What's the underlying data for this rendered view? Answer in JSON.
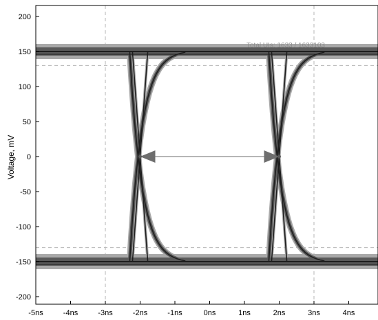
{
  "chart_data": {
    "type": "line",
    "title": "",
    "xlabel": "",
    "ylabel": "Voltage, mV",
    "xlim": [
      -5,
      5
    ],
    "ylim": [
      -220,
      220
    ],
    "x_ticks": [
      -5,
      -4,
      -3,
      -2,
      -1,
      0,
      1,
      2,
      3,
      4
    ],
    "x_tick_labels": [
      "-5ns",
      "-4ns",
      "-3ns",
      "-2ns",
      "-1ns",
      "0ns",
      "1ns",
      "2ns",
      "3ns",
      "4ns"
    ],
    "y_ticks": [
      200,
      150,
      100,
      50,
      0,
      -50,
      -100,
      -150,
      -200
    ],
    "y_tick_labels": [
      "200",
      "150",
      "100",
      "50",
      "0",
      "-50",
      "-100",
      "-150",
      "-200"
    ],
    "grid": true,
    "dashed_vertical_lines": [
      -3,
      3
    ],
    "dashed_horizontal_lines": [
      130,
      -130
    ],
    "eye_crossings": [
      -2,
      2
    ],
    "eye_levels": [
      150,
      -150
    ],
    "arrow": {
      "from": [
        -2,
        0
      ],
      "to": [
        2,
        0
      ]
    },
    "annotation": "Total UIs: 1633 / 1633103",
    "colors": {
      "trace_core": "#1e1e1e",
      "trace_mid": "#5a5a5a",
      "trace_halo": "#a9a9a9",
      "arrow": "#6e6e6e",
      "grid": "#b5b5b5"
    }
  }
}
